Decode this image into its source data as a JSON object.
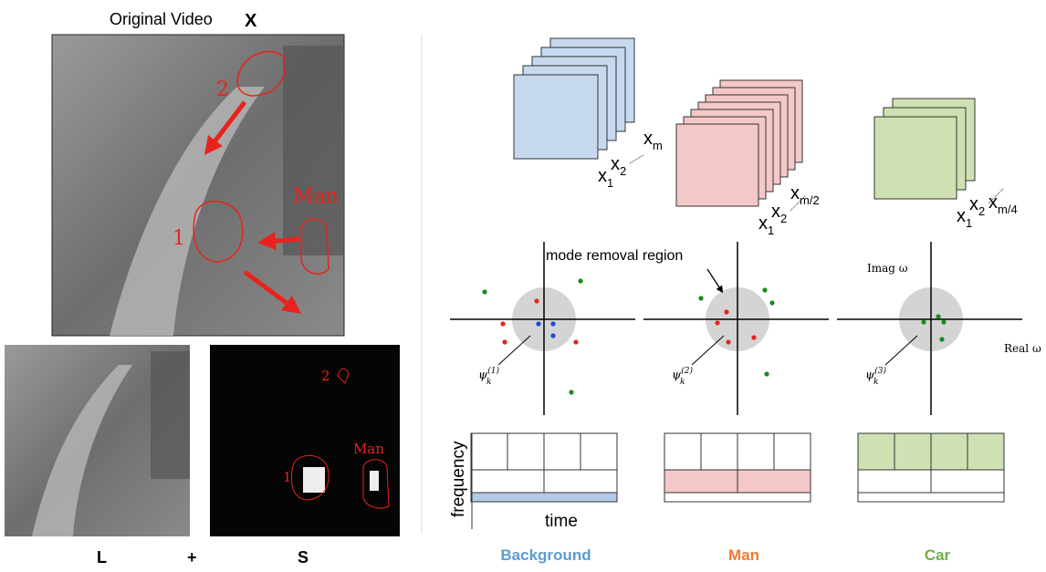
{
  "left": {
    "title": "Original Video",
    "title_symbol": "X",
    "video_annotations": [
      "2",
      "Man",
      "1"
    ],
    "sparse_annotations": [
      "2",
      "Man",
      "1"
    ],
    "bottom_labels": [
      "L",
      "+",
      "S"
    ]
  },
  "right": {
    "columns": [
      {
        "name": "Background",
        "vector_labels": [
          {
            "base": "x",
            "sub": "m"
          },
          {
            "base": "x",
            "sub": "1"
          },
          {
            "base": "x",
            "sub": "2"
          }
        ],
        "mode": {
          "base": "ψ",
          "sub": "k",
          "sup": "(1)"
        }
      },
      {
        "name": "Man",
        "vector_labels": [
          {
            "base": "x",
            "sub": "m/2"
          },
          {
            "base": "x",
            "sub": "1"
          },
          {
            "base": "x",
            "sub": "2"
          }
        ],
        "mode": {
          "base": "ψ",
          "sub": "k",
          "sup": "(2)"
        }
      },
      {
        "name": "Car",
        "vector_labels": [
          {
            "base": "x",
            "sub": "m/4"
          },
          {
            "base": "x",
            "sub": "1"
          },
          {
            "base": "x",
            "sub": "2"
          }
        ],
        "mode": {
          "base": "ψ",
          "sub": "k",
          "sup": "(3)"
        }
      }
    ],
    "mode_removal_label": "mode removal region",
    "imag_axis_label": "Imag ω",
    "real_axis_label": "Real ω",
    "y_axis_label": "frequency",
    "x_axis_label": "time"
  }
}
